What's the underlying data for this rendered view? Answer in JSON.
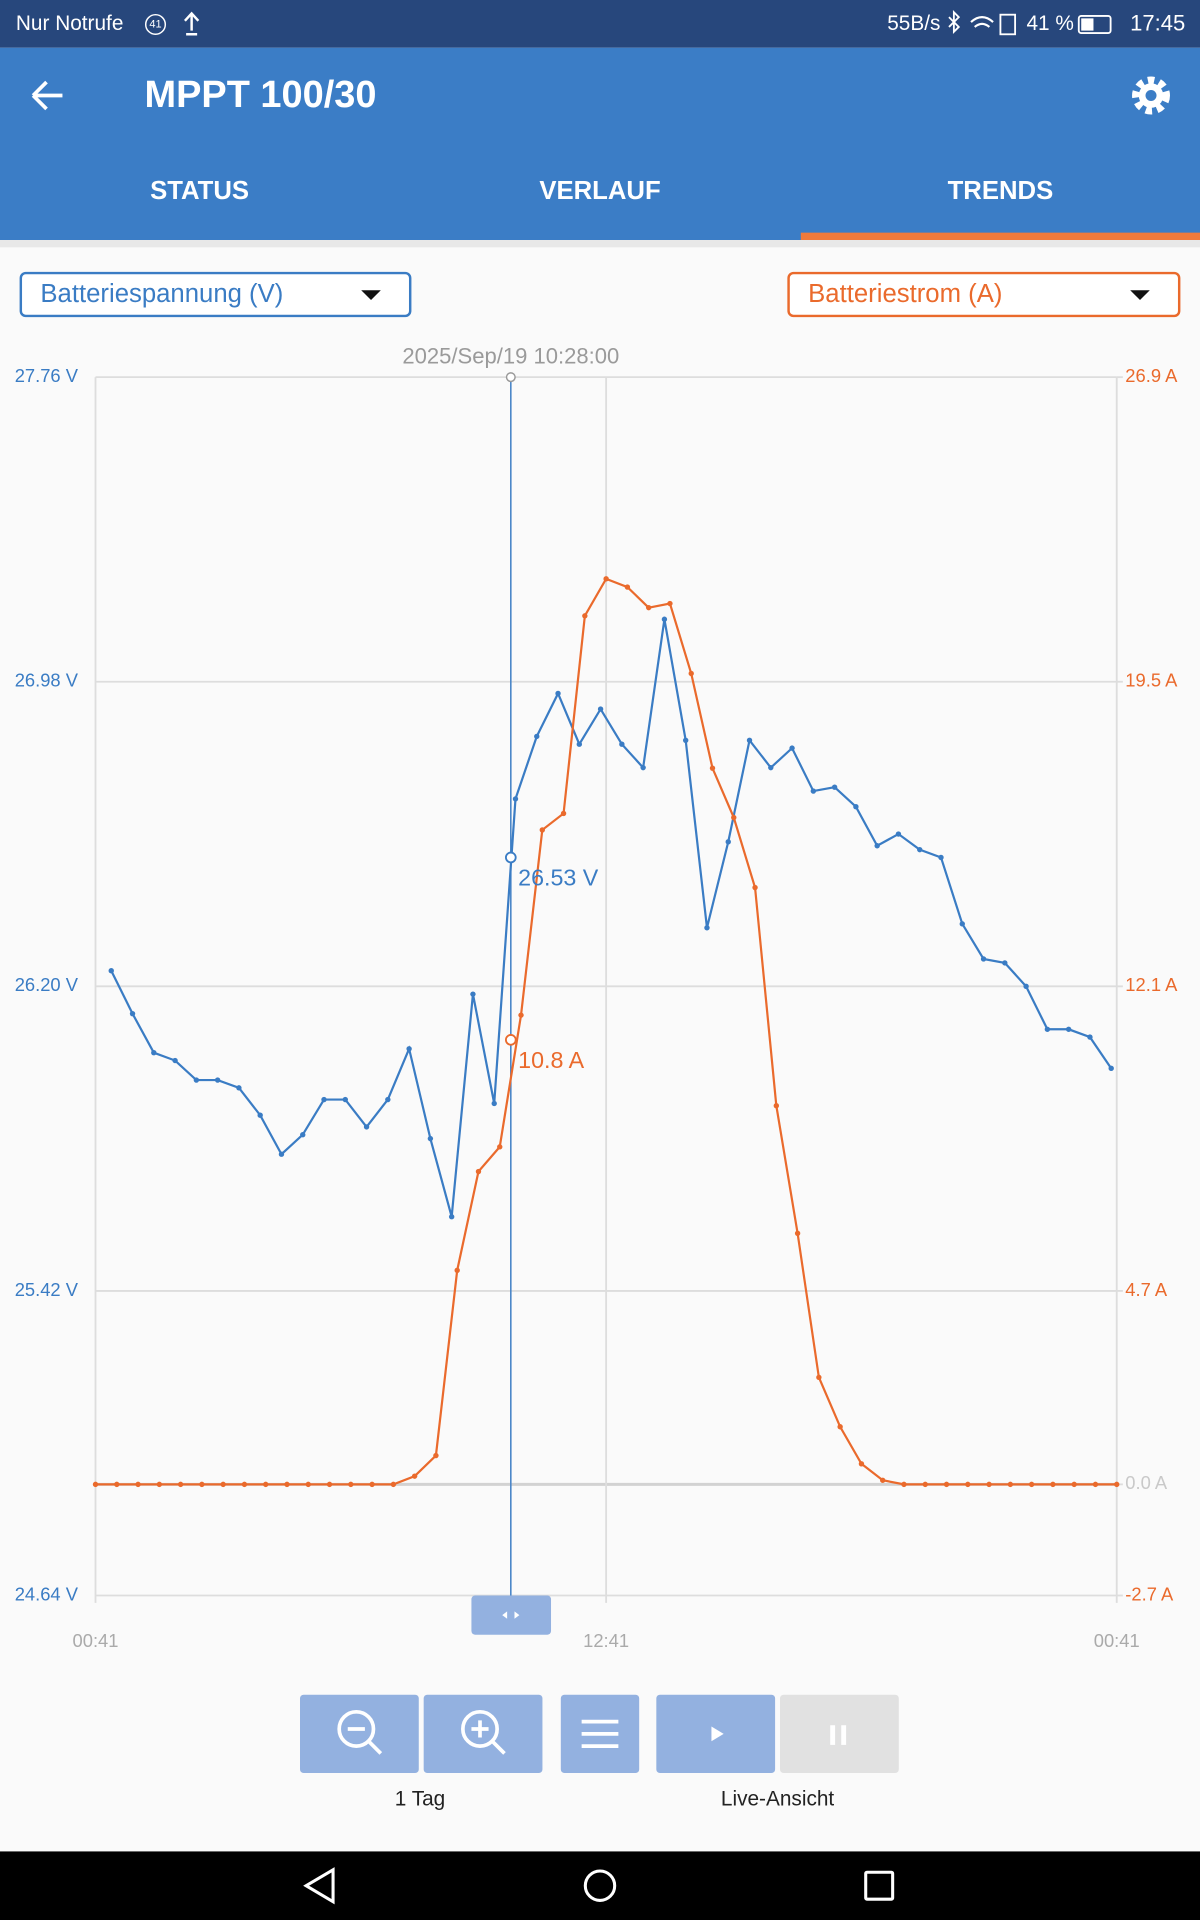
{
  "status_bar": {
    "carrier": "Nur Notrufe",
    "notification_count": "41",
    "speed": "55B/s",
    "battery": "41 %",
    "time": "17:45"
  },
  "header": {
    "title": "MPPT 100/30"
  },
  "tabs": [
    "STATUS",
    "VERLAUF",
    "TRENDS"
  ],
  "chart_data": {
    "type": "line",
    "xlim": [
      0,
      24
    ],
    "xticks": [
      {
        "value": 0,
        "label": "00:41"
      },
      {
        "value": 12,
        "label": "12:41"
      },
      {
        "value": 24,
        "label": "00:41"
      }
    ],
    "ylim": [
      24.64,
      27.76
    ],
    "yticks": [
      {
        "value": 24.64,
        "label": "24.64 V"
      },
      {
        "value": 25.42,
        "label": "25.42 V"
      },
      {
        "value": 26.2,
        "label": "26.20 V"
      },
      {
        "value": 26.98,
        "label": "26.98 V"
      },
      {
        "value": 27.76,
        "label": "27.76 V"
      }
    ],
    "y2lim": [
      -2.7,
      26.9
    ],
    "y2ticks": [
      {
        "value": -2.7,
        "label": "-2.7 A"
      },
      {
        "value": 0,
        "label": "0.0 A"
      },
      {
        "value": 4.7,
        "label": "4.7 A"
      },
      {
        "value": 12.1,
        "label": "12.1 A"
      },
      {
        "value": 19.5,
        "label": "19.5 A"
      },
      {
        "value": 26.9,
        "label": "26.9 A"
      }
    ],
    "grid": true,
    "series": [
      {
        "name": "Batteriespannung (V)",
        "color": "#3a7cc4",
        "x": [
          0.37,
          0.87,
          1.37,
          1.87,
          2.37,
          2.87,
          3.37,
          3.87,
          4.37,
          4.87,
          5.37,
          5.87,
          6.37,
          6.87,
          7.37,
          7.87,
          8.37,
          8.87,
          9.37,
          9.87,
          10.37,
          10.87,
          11.37,
          11.87,
          12.37,
          12.87,
          13.37,
          13.87,
          14.37,
          14.87,
          15.37,
          15.87,
          16.37,
          16.87,
          17.37,
          17.87,
          18.37,
          18.87,
          19.37,
          19.87,
          20.37,
          20.87,
          21.37,
          21.87,
          22.37,
          22.87,
          23.37,
          23.87
        ],
        "values": [
          26.24,
          26.13,
          26.03,
          26.01,
          25.96,
          25.96,
          25.94,
          25.87,
          25.77,
          25.82,
          25.91,
          25.91,
          25.84,
          25.91,
          26.04,
          25.81,
          25.61,
          26.18,
          25.9,
          26.68,
          26.84,
          26.95,
          26.82,
          26.91,
          26.82,
          26.76,
          27.14,
          26.83,
          26.35,
          26.57,
          26.83,
          26.76,
          26.81,
          26.7,
          26.71,
          26.66,
          26.56,
          26.59,
          26.55,
          26.53,
          26.36,
          26.27,
          26.26,
          26.2,
          26.09,
          26.09,
          26.07,
          25.99
        ]
      },
      {
        "name": "Batteriestrom (A)",
        "color": "#ea6a2c",
        "axis": "y2",
        "x": [
          0,
          0.5,
          1,
          1.5,
          2,
          2.5,
          3,
          3.5,
          4,
          4.5,
          5,
          5.5,
          6,
          6.5,
          7,
          7.5,
          8,
          8.5,
          9,
          9.5,
          10,
          10.5,
          11,
          11.5,
          12,
          12.5,
          13,
          13.5,
          14,
          14.5,
          15,
          15.5,
          16,
          16.5,
          17,
          17.5,
          18,
          18.5,
          19,
          19.5,
          20,
          20.5,
          21,
          21.5,
          22,
          22.5,
          23,
          23.5,
          24
        ],
        "values": [
          0,
          0,
          0,
          0,
          0,
          0,
          0,
          0,
          0,
          0,
          0,
          0,
          0,
          0,
          0,
          0.2,
          0.7,
          5.2,
          7.6,
          8.2,
          11.4,
          15.9,
          16.3,
          21.1,
          22,
          21.8,
          21.3,
          21.4,
          19.7,
          17.4,
          16.2,
          14.5,
          9.2,
          6.1,
          2.6,
          1.4,
          0.5,
          0.1,
          0,
          0,
          0,
          0,
          0,
          0,
          0,
          0,
          0,
          0,
          0
        ]
      }
    ],
    "cursor": {
      "label": "2025/Sep/19 10:28:00",
      "x": 9.76,
      "values": [
        26.53,
        10.8
      ],
      "value_labels": [
        "26.53 V",
        "10.8 A"
      ]
    }
  },
  "controls": {
    "zoom_label": "1 Tag",
    "live_label": "Live-Ansicht"
  }
}
